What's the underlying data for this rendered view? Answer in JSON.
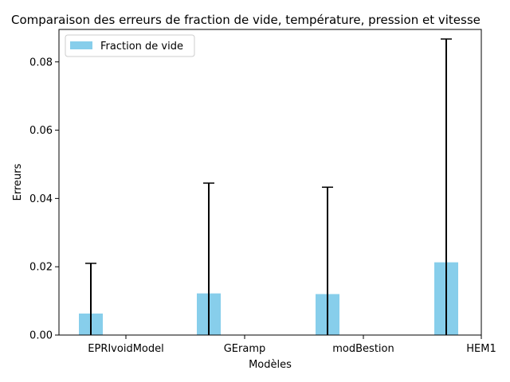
{
  "chart_data": {
    "type": "bar",
    "title": "Comparaison des erreurs de fraction de vide, température, pression et vitesse",
    "xlabel": "Modèles",
    "ylabel": "Erreurs",
    "categories": [
      "EPRIvoidModel",
      "GEramp",
      "modBestion",
      "HEM1"
    ],
    "series": [
      {
        "name": "Fraction de vide",
        "color": "#87ceeb",
        "values": [
          0.0063,
          0.0122,
          0.012,
          0.0213
        ],
        "errors": [
          0.021,
          0.0445,
          0.0433,
          0.0867
        ]
      }
    ],
    "ylim": [
      0,
      0.0895
    ],
    "yticks": [
      0.0,
      0.02,
      0.04,
      0.06,
      0.08
    ],
    "ytick_labels": [
      "0.00",
      "0.02",
      "0.04",
      "0.06",
      "0.08"
    ],
    "grid": false,
    "legend_position": "top-left"
  }
}
